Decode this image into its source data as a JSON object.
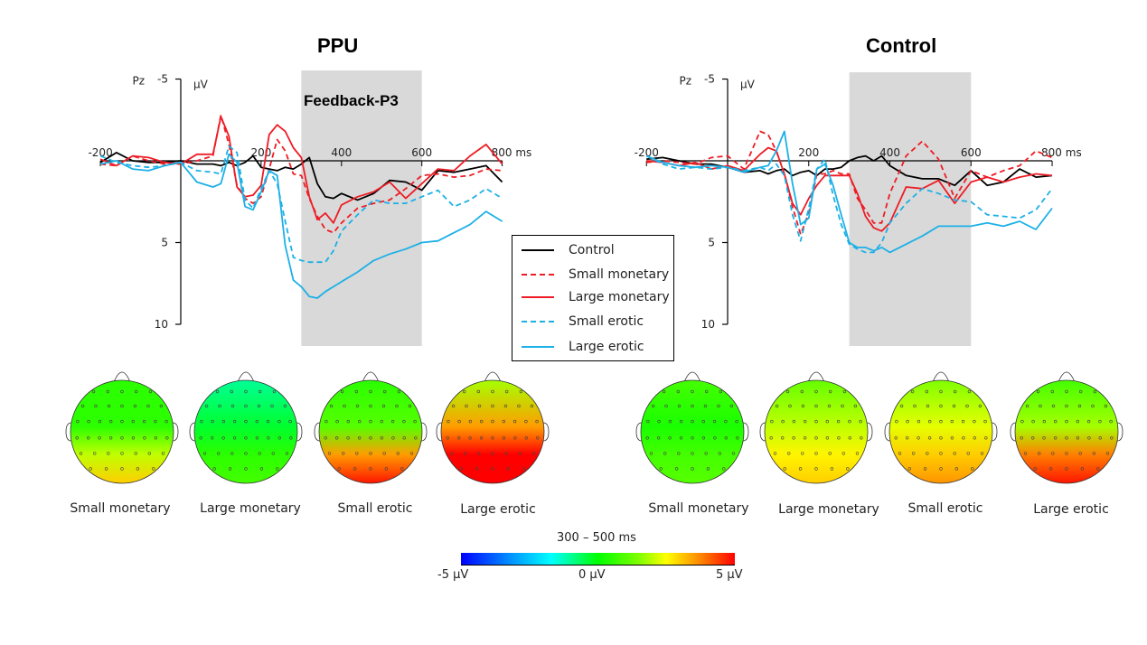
{
  "figure": {
    "topo_time_window": "300 – 500 ms",
    "colorbar": {
      "min_label": "-5 µV",
      "mid_label": "0 µV",
      "max_label": "5 µV",
      "range": [
        -5,
        5
      ],
      "unit": "µV"
    }
  },
  "legend": [
    {
      "name": "Control",
      "color": "#000000",
      "dash": false
    },
    {
      "name": "Small monetary",
      "color": "#ee1c25",
      "dash": true
    },
    {
      "name": "Large monetary",
      "color": "#ee1c25",
      "dash": false
    },
    {
      "name": "Small erotic",
      "color": "#1cb0e6",
      "dash": true
    },
    {
      "name": "Large erotic",
      "color": "#1cb0e6",
      "dash": false
    }
  ],
  "chart_data": [
    {
      "type": "line",
      "title": "PPU",
      "electrode": "Pz",
      "ylabel": "µV",
      "xlabel": "ms",
      "xlim": [
        -200,
        800
      ],
      "ylim": [
        -5,
        10
      ],
      "y_inverted": true,
      "xticks": [
        -200,
        200,
        400,
        600,
        800
      ],
      "xtick_labels": [
        "-200",
        "200",
        "400",
        "600",
        "800 ms"
      ],
      "yticks": [
        -5,
        5,
        10
      ],
      "ytick_labels": [
        "-5",
        "5",
        "10"
      ],
      "shaded_window": {
        "label": "Feedback-P3",
        "range": [
          300,
          600
        ]
      },
      "x": [
        -200,
        -160,
        -120,
        -80,
        -40,
        0,
        40,
        80,
        100,
        120,
        140,
        160,
        180,
        200,
        220,
        240,
        260,
        280,
        300,
        320,
        340,
        360,
        380,
        400,
        440,
        480,
        520,
        560,
        600,
        640,
        680,
        720,
        760,
        800
      ],
      "series": [
        {
          "name": "Control",
          "values": [
            0.1,
            -0.5,
            0,
            0.1,
            0.1,
            0,
            0.2,
            0.2,
            0.3,
            0.1,
            0.3,
            0.1,
            -0.3,
            0.4,
            0.5,
            0.6,
            0.4,
            0.5,
            0.2,
            -0.2,
            1.4,
            2.2,
            2.3,
            2.0,
            2.4,
            2.0,
            1.2,
            1.3,
            1.8,
            0.6,
            0.7,
            0.5,
            0.3,
            1.3
          ]
        },
        {
          "name": "Small monetary",
          "values": [
            0.2,
            0.3,
            -0.3,
            0,
            0.2,
            0.2,
            0,
            -0.3,
            -2.8,
            -1.0,
            1.5,
            2.3,
            2.6,
            2.2,
            0.5,
            -1.3,
            -0.6,
            0.8,
            0.9,
            2.3,
            3.4,
            4.2,
            4.4,
            3.8,
            2.9,
            2.6,
            2.4,
            1.7,
            0.9,
            0.8,
            1.0,
            0.9,
            0.5,
            0.6
          ]
        },
        {
          "name": "Large monetary",
          "values": [
            -0.1,
            0.3,
            -0.3,
            -0.2,
            0.1,
            0.2,
            -0.4,
            -0.4,
            -2.7,
            -1.5,
            1.6,
            2.2,
            2.1,
            1.5,
            -1.6,
            -2.2,
            -1.8,
            -0.8,
            -0.2,
            2.2,
            3.6,
            3.2,
            3.8,
            2.7,
            2.2,
            1.9,
            1.3,
            2.3,
            1.4,
            0.5,
            0.6,
            -0.3,
            -1.0,
            0.2
          ]
        },
        {
          "name": "Small erotic",
          "values": [
            -0.3,
            0.1,
            0.3,
            0.4,
            0.3,
            0.1,
            0.6,
            0.7,
            0.8,
            -0.9,
            -0.5,
            2.4,
            2.9,
            1.7,
            0.6,
            1.4,
            3.7,
            5.9,
            6.1,
            6.2,
            6.2,
            6.2,
            5.5,
            4.3,
            3.3,
            2.4,
            2.6,
            2.6,
            2.2,
            1.8,
            2.8,
            2.4,
            1.7,
            2.3
          ]
        },
        {
          "name": "Large erotic",
          "values": [
            0.2,
            0,
            0.5,
            0.6,
            0.3,
            0.1,
            1.3,
            1.6,
            1.4,
            -0.4,
            0.1,
            2.8,
            3.0,
            1.9,
            0.6,
            0.9,
            5.2,
            7.3,
            7.7,
            8.3,
            8.4,
            8.0,
            7.7,
            7.4,
            6.8,
            6.1,
            5.7,
            5.4,
            5.0,
            4.9,
            4.4,
            3.9,
            3.1,
            3.7
          ]
        }
      ]
    },
    {
      "type": "line",
      "title": "Control",
      "electrode": "Pz",
      "ylabel": "µV",
      "xlabel": "ms",
      "xlim": [
        -200,
        800
      ],
      "ylim": [
        -5,
        10
      ],
      "y_inverted": true,
      "xticks": [
        -200,
        200,
        400,
        600,
        800
      ],
      "xtick_labels": [
        "-200",
        "200",
        "400",
        "600",
        "800 ms"
      ],
      "yticks": [
        -5,
        5,
        10
      ],
      "ytick_labels": [
        "-5",
        "5",
        "10"
      ],
      "shaded_window": {
        "label": "",
        "range": [
          300,
          600
        ]
      },
      "x": [
        -200,
        -160,
        -120,
        -80,
        -40,
        0,
        40,
        80,
        100,
        120,
        140,
        160,
        180,
        200,
        220,
        240,
        260,
        280,
        300,
        320,
        340,
        360,
        380,
        400,
        440,
        480,
        520,
        560,
        600,
        640,
        680,
        720,
        760,
        800
      ],
      "series": [
        {
          "name": "Control",
          "values": [
            -0.1,
            -0.2,
            0,
            0.2,
            0.2,
            0.4,
            0.7,
            0.6,
            0.8,
            0.6,
            0.5,
            0.9,
            0.7,
            0.6,
            0.9,
            0.5,
            0.5,
            0.4,
            0,
            -0.2,
            -0.3,
            0,
            -0.3,
            0.3,
            0.9,
            1.1,
            1.1,
            1.5,
            0.6,
            1.5,
            1.3,
            0.5,
            1.0,
            0.9
          ]
        },
        {
          "name": "Small monetary",
          "values": [
            0.1,
            0,
            0.1,
            0.2,
            -0.2,
            -0.3,
            0.5,
            -1.8,
            -1.6,
            -0.6,
            0.8,
            2.8,
            4.5,
            3.2,
            0.8,
            0.8,
            0.6,
            0.8,
            0.8,
            2.3,
            3.0,
            3.8,
            3.8,
            2.0,
            -0.3,
            -1.2,
            -0.1,
            2.3,
            0.6,
            1.0,
            0.6,
            0.3,
            -0.6,
            -0.2
          ]
        },
        {
          "name": "Large monetary",
          "values": [
            0,
            0.1,
            0.3,
            0.1,
            0.5,
            0.3,
            0.6,
            -0.4,
            -0.8,
            -0.6,
            0.8,
            2.6,
            3.3,
            2.3,
            1.5,
            0.9,
            0.9,
            0.9,
            0.9,
            2.0,
            3.4,
            4.1,
            4.3,
            3.8,
            1.6,
            1.7,
            1.2,
            2.6,
            1.3,
            1.0,
            1.3,
            1.0,
            0.8,
            0.9
          ]
        },
        {
          "name": "Small erotic",
          "values": [
            -0.3,
            0.2,
            0.5,
            0.4,
            0.5,
            0.4,
            0.6,
            0.4,
            0.6,
            0.2,
            0.9,
            3.3,
            4.9,
            2.9,
            0.5,
            -0.1,
            2.1,
            3.9,
            5.1,
            5.4,
            5.6,
            5.6,
            5.0,
            3.8,
            2.6,
            1.7,
            2.0,
            2.4,
            2.5,
            3.3,
            3.4,
            3.5,
            3.0,
            1.7
          ]
        },
        {
          "name": "Large erotic",
          "values": [
            -0.3,
            0.1,
            0.3,
            0.4,
            0.3,
            0.4,
            0.7,
            0.4,
            0.3,
            -0.6,
            -1.8,
            1.4,
            3.9,
            3.5,
            0.5,
            0.2,
            1.5,
            3.3,
            5.0,
            5.3,
            5.3,
            5.5,
            5.3,
            5.6,
            5.1,
            4.6,
            4.0,
            4.0,
            4.0,
            3.8,
            4.0,
            3.7,
            4.2,
            2.9
          ]
        }
      ]
    },
    {
      "type": "heatmap",
      "title": "Topographic maps 300 – 500 ms",
      "groups": [
        {
          "group": "PPU",
          "maps": [
            {
              "label": "Small monetary",
              "frontal_uV": 0.5,
              "central_uV": 0.5,
              "parietal_uV": 2.0,
              "occipital_uV": 3.0
            },
            {
              "label": "Large monetary",
              "frontal_uV": -1.0,
              "central_uV": -0.3,
              "parietal_uV": 0.5,
              "occipital_uV": 0.8
            },
            {
              "label": "Small erotic",
              "frontal_uV": 0.5,
              "central_uV": 1.0,
              "parietal_uV": 3.5,
              "occipital_uV": 4.8
            },
            {
              "label": "Large erotic",
              "frontal_uV": 1.8,
              "central_uV": 3.5,
              "parietal_uV": 5.0,
              "occipital_uV": 5.0
            }
          ]
        },
        {
          "group": "Control",
          "maps": [
            {
              "label": "Small monetary",
              "frontal_uV": 0.8,
              "central_uV": 0.3,
              "parietal_uV": 0.8,
              "occipital_uV": 1.0
            },
            {
              "label": "Large monetary",
              "frontal_uV": 1.2,
              "central_uV": 2.0,
              "parietal_uV": 2.6,
              "occipital_uV": 3.0
            },
            {
              "label": "Small erotic",
              "frontal_uV": 1.5,
              "central_uV": 2.3,
              "parietal_uV": 3.0,
              "occipital_uV": 3.6
            },
            {
              "label": "Large erotic",
              "frontal_uV": 0.8,
              "central_uV": 1.8,
              "parietal_uV": 3.8,
              "occipital_uV": 4.8
            }
          ]
        }
      ]
    }
  ]
}
